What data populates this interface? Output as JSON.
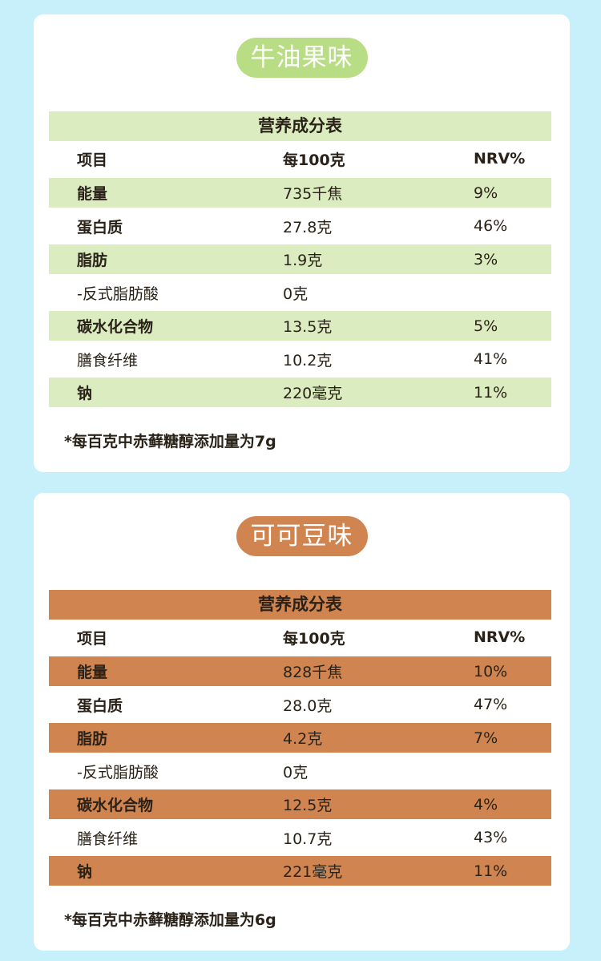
{
  "colors": {
    "background": "#c8f0fb",
    "avocado_accent": "#b9dd84",
    "avocado_shade": "#dbecc0",
    "cocoa_accent": "#d08551",
    "cocoa_shade": "#d08551"
  },
  "cards": [
    {
      "flavor": "牛油果味",
      "table_title": "营养成分表",
      "headers": [
        "项目",
        "每100克",
        "NRV%"
      ],
      "rows": [
        {
          "item": "能量",
          "per100": "735千焦",
          "nrv": "9%"
        },
        {
          "item": "蛋白质",
          "per100": "27.8克",
          "nrv": "46%"
        },
        {
          "item": "脂肪",
          "per100": "1.9克",
          "nrv": "3%"
        },
        {
          "item": "-反式脂肪酸",
          "per100": "0克",
          "nrv": ""
        },
        {
          "item": "碳水化合物",
          "per100": "13.5克",
          "nrv": "5%"
        },
        {
          "item": "膳食纤维",
          "per100": "10.2克",
          "nrv": "41%"
        },
        {
          "item": "钠",
          "per100": "220毫克",
          "nrv": "11%"
        }
      ],
      "note": "*每百克中赤藓糖醇添加量为7g"
    },
    {
      "flavor": "可可豆味",
      "table_title": "营养成分表",
      "headers": [
        "项目",
        "每100克",
        "NRV%"
      ],
      "rows": [
        {
          "item": "能量",
          "per100": "828千焦",
          "nrv": "10%"
        },
        {
          "item": "蛋白质",
          "per100": "28.0克",
          "nrv": "47%"
        },
        {
          "item": "脂肪",
          "per100": "4.2克",
          "nrv": "7%"
        },
        {
          "item": "-反式脂肪酸",
          "per100": "0克",
          "nrv": ""
        },
        {
          "item": "碳水化合物",
          "per100": "12.5克",
          "nrv": "4%"
        },
        {
          "item": "膳食纤维",
          "per100": "10.7克",
          "nrv": "43%"
        },
        {
          "item": "钠",
          "per100": "221毫克",
          "nrv": "11%"
        }
      ],
      "note": "*每百克中赤藓糖醇添加量为6g"
    }
  ]
}
